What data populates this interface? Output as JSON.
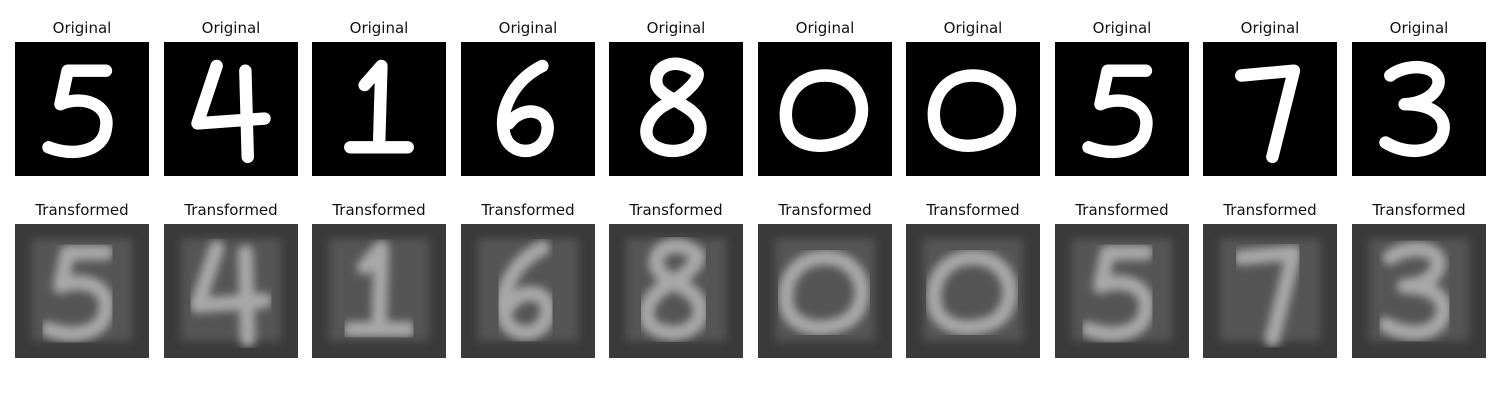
{
  "row_original": {
    "title": "Original",
    "background": "#000000",
    "stroke_color": "#ffffff",
    "digits": [
      "5",
      "4",
      "1",
      "6",
      "8",
      "0",
      "0",
      "5",
      "7",
      "3"
    ]
  },
  "row_transformed": {
    "title": "Transformed",
    "background": "#3a3a3a",
    "inner_color": "#555555",
    "stroke_color": "#a8a8a8",
    "digits": [
      "5",
      "4",
      "1",
      "6",
      "8",
      "0",
      "0",
      "5",
      "7",
      "3"
    ]
  }
}
